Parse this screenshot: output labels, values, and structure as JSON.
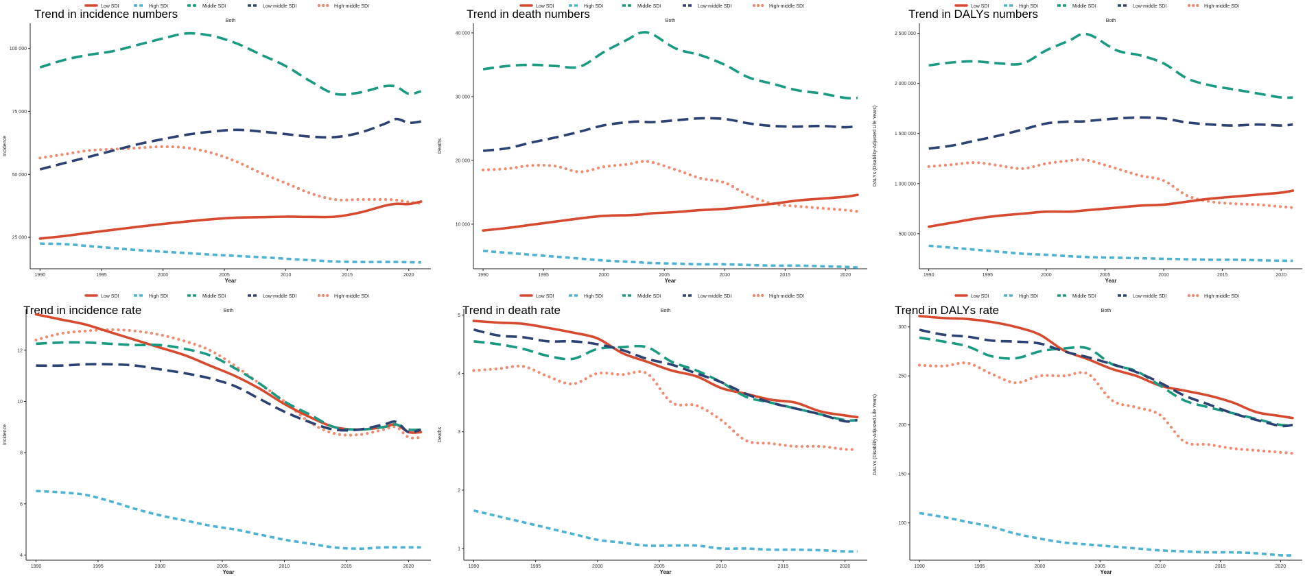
{
  "figure": {
    "series_names": [
      "Low SDI",
      "High SDI",
      "Middle SDI",
      "Low-middle SDI",
      "High-middle SDI"
    ],
    "series_colors": [
      "#d64a2f",
      "#4db3d3",
      "#1a9a80",
      "#2b4272",
      "#f08a70"
    ],
    "series_styles": [
      "solid",
      "dashed",
      "longdash",
      "longdash",
      "dotted"
    ]
  },
  "chart_data": [
    {
      "type": "line",
      "title": "Trend in incidence numbers",
      "subtitle": "Both",
      "xlabel": "Year",
      "ylabel": "Incidence",
      "xlim": [
        1989.2,
        2021.8
      ],
      "ylim": [
        12500,
        110000
      ],
      "x_ticks": [
        1990,
        1995,
        2000,
        2005,
        2010,
        2015,
        2020
      ],
      "y_ticks": [
        25000,
        50000,
        75000,
        100000
      ],
      "y_tick_labels": [
        "25 000",
        "50 000",
        "75 000",
        "100 000"
      ],
      "x": [
        1990,
        1992,
        1994,
        1996,
        1998,
        2000,
        2002,
        2004,
        2006,
        2008,
        2010,
        2012,
        2014,
        2016,
        2018,
        2019,
        2020,
        2021
      ],
      "series": [
        {
          "name": "Low SDI",
          "values": [
            24500,
            25500,
            26800,
            28000,
            29200,
            30300,
            31300,
            32200,
            32800,
            33000,
            33200,
            33100,
            33200,
            34800,
            37500,
            38300,
            38200,
            39200
          ]
        },
        {
          "name": "High SDI",
          "values": [
            22500,
            22300,
            21500,
            20700,
            19900,
            19300,
            18700,
            18100,
            17600,
            17100,
            16500,
            15900,
            15400,
            15200,
            15200,
            15200,
            15100,
            15000
          ]
        },
        {
          "name": "Middle SDI",
          "values": [
            92500,
            95500,
            97500,
            99000,
            101500,
            104000,
            106000,
            105000,
            102000,
            97500,
            93000,
            87000,
            82000,
            82500,
            85000,
            84800,
            82000,
            83000
          ]
        },
        {
          "name": "Low-middle SDI",
          "values": [
            52000,
            54500,
            57000,
            59500,
            62000,
            64000,
            65800,
            67000,
            67700,
            67000,
            66000,
            65000,
            64800,
            66500,
            70000,
            72000,
            70500,
            71000
          ]
        },
        {
          "name": "High-middle SDI",
          "values": [
            56500,
            58000,
            59500,
            60000,
            60500,
            61000,
            60500,
            58500,
            55000,
            50500,
            46500,
            42500,
            40000,
            40000,
            40000,
            39800,
            39000,
            38500
          ]
        }
      ]
    },
    {
      "type": "line",
      "title": "Trend in death numbers",
      "subtitle": "Both",
      "xlabel": "Year",
      "ylabel": "Deaths",
      "xlim": [
        1989.2,
        2021.8
      ],
      "ylim": [
        3000,
        41500
      ],
      "x_ticks": [
        1990,
        1995,
        2000,
        2005,
        2010,
        2015,
        2020
      ],
      "y_ticks": [
        10000,
        20000,
        30000,
        40000
      ],
      "y_tick_labels": [
        "10 000",
        "20 000",
        "30 000",
        "40 000"
      ],
      "x": [
        1990,
        1992,
        1994,
        1996,
        1998,
        2000,
        2002,
        2003,
        2004,
        2006,
        2008,
        2010,
        2012,
        2014,
        2016,
        2018,
        2020,
        2021
      ],
      "series": [
        {
          "name": "Low SDI",
          "values": [
            9000,
            9400,
            9900,
            10400,
            10900,
            11300,
            11400,
            11500,
            11700,
            11900,
            12200,
            12400,
            12800,
            13200,
            13700,
            14000,
            14300,
            14600
          ]
        },
        {
          "name": "High SDI",
          "values": [
            5800,
            5500,
            5200,
            4900,
            4600,
            4300,
            4100,
            4000,
            3900,
            3800,
            3700,
            3700,
            3600,
            3500,
            3500,
            3400,
            3300,
            3200
          ]
        },
        {
          "name": "Middle SDI",
          "values": [
            34300,
            34800,
            35000,
            34800,
            34700,
            37000,
            39000,
            40000,
            39800,
            37500,
            36500,
            35000,
            33000,
            32000,
            31000,
            30500,
            29800,
            29800
          ]
        },
        {
          "name": "Low-middle SDI",
          "values": [
            21500,
            21900,
            22800,
            23600,
            24500,
            25500,
            26000,
            26100,
            26000,
            26300,
            26600,
            26500,
            25800,
            25400,
            25300,
            25400,
            25200,
            25400
          ]
        },
        {
          "name": "High-middle SDI",
          "values": [
            18500,
            18700,
            19200,
            19100,
            18200,
            19000,
            19400,
            19800,
            19700,
            18500,
            17200,
            16500,
            14500,
            13200,
            12800,
            12500,
            12200,
            12000
          ]
        }
      ]
    },
    {
      "type": "line",
      "title": "Trend in DALYs numbers",
      "subtitle": "Both",
      "xlabel": "Year",
      "ylabel": "DALYs (Disability-Adjusted Life Years)",
      "xlim": [
        1989.2,
        2021.8
      ],
      "ylim": [
        150000,
        2600000
      ],
      "x_ticks": [
        1990,
        1995,
        2000,
        2005,
        2010,
        2015,
        2020
      ],
      "y_ticks": [
        500000,
        1000000,
        1500000,
        2000000,
        2500000
      ],
      "y_tick_labels": [
        "500 000",
        "1 000 000",
        "1 500 000",
        "2 000 000",
        "2 500 000"
      ],
      "x": [
        1990,
        1992,
        1994,
        1996,
        1998,
        2000,
        2002,
        2003,
        2004,
        2006,
        2008,
        2010,
        2012,
        2014,
        2016,
        2018,
        2020,
        2021
      ],
      "series": [
        {
          "name": "Low SDI",
          "values": [
            570000,
            610000,
            650000,
            680000,
            700000,
            720000,
            720000,
            730000,
            740000,
            760000,
            780000,
            790000,
            820000,
            850000,
            870000,
            890000,
            910000,
            930000
          ]
        },
        {
          "name": "High SDI",
          "values": [
            380000,
            360000,
            340000,
            320000,
            300000,
            290000,
            275000,
            270000,
            265000,
            260000,
            255000,
            250000,
            245000,
            240000,
            240000,
            235000,
            230000,
            230000
          ]
        },
        {
          "name": "Middle SDI",
          "values": [
            2180000,
            2210000,
            2220000,
            2200000,
            2200000,
            2330000,
            2430000,
            2490000,
            2470000,
            2330000,
            2280000,
            2200000,
            2050000,
            1980000,
            1940000,
            1900000,
            1860000,
            1860000
          ]
        },
        {
          "name": "Low-middle SDI",
          "values": [
            1350000,
            1380000,
            1430000,
            1480000,
            1540000,
            1600000,
            1620000,
            1620000,
            1630000,
            1650000,
            1660000,
            1650000,
            1610000,
            1590000,
            1580000,
            1590000,
            1580000,
            1590000
          ]
        },
        {
          "name": "High-middle SDI",
          "values": [
            1170000,
            1190000,
            1210000,
            1180000,
            1150000,
            1200000,
            1230000,
            1240000,
            1220000,
            1150000,
            1080000,
            1030000,
            880000,
            820000,
            800000,
            790000,
            770000,
            760000
          ]
        }
      ]
    },
    {
      "type": "line",
      "title": "Trend in incidence rate",
      "subtitle": "Both",
      "xlabel": "Year",
      "ylabel": "Incidence",
      "xlim": [
        1989.2,
        2021.8
      ],
      "ylim": [
        3.8,
        13.6
      ],
      "x_ticks": [
        1990,
        1995,
        2000,
        2005,
        2010,
        2015,
        2020
      ],
      "y_ticks": [
        4,
        6,
        8,
        10,
        12
      ],
      "y_tick_labels": [
        "4",
        "6",
        "8",
        "10",
        "12"
      ],
      "x": [
        1990,
        1992,
        1994,
        1996,
        1998,
        2000,
        2002,
        2004,
        2006,
        2008,
        2010,
        2012,
        2014,
        2016,
        2018,
        2019,
        2020,
        2021
      ],
      "series": [
        {
          "name": "Low SDI",
          "values": [
            13.4,
            13.2,
            13.0,
            12.7,
            12.4,
            12.1,
            11.8,
            11.4,
            11.0,
            10.5,
            9.9,
            9.4,
            9.0,
            8.9,
            9.0,
            9.1,
            8.8,
            8.8
          ]
        },
        {
          "name": "High SDI",
          "values": [
            6.5,
            6.45,
            6.35,
            6.1,
            5.8,
            5.55,
            5.35,
            5.15,
            5.0,
            4.8,
            4.6,
            4.45,
            4.3,
            4.25,
            4.3,
            4.3,
            4.3,
            4.3
          ]
        },
        {
          "name": "Middle SDI",
          "values": [
            12.25,
            12.3,
            12.3,
            12.25,
            12.2,
            12.2,
            12.05,
            11.8,
            11.3,
            10.7,
            10.0,
            9.5,
            9.0,
            8.9,
            9.0,
            9.1,
            8.9,
            8.9
          ]
        },
        {
          "name": "Low-middle SDI",
          "values": [
            11.4,
            11.4,
            11.45,
            11.45,
            11.4,
            11.25,
            11.1,
            10.9,
            10.6,
            10.1,
            9.6,
            9.2,
            8.9,
            8.9,
            9.1,
            9.2,
            8.8,
            8.9
          ]
        },
        {
          "name": "High-middle SDI",
          "values": [
            12.4,
            12.65,
            12.75,
            12.8,
            12.75,
            12.6,
            12.35,
            12.0,
            11.4,
            10.7,
            10.0,
            9.2,
            8.75,
            8.7,
            8.9,
            9.0,
            8.6,
            8.6
          ]
        }
      ]
    },
    {
      "type": "line",
      "title": "Trend in death rate",
      "subtitle": "Both",
      "xlabel": "Year",
      "ylabel": "Deaths",
      "xlim": [
        1989.2,
        2021.8
      ],
      "ylim": [
        0.8,
        5.1
      ],
      "x_ticks": [
        1990,
        1995,
        2000,
        2005,
        2010,
        2015,
        2020
      ],
      "y_ticks": [
        1,
        2,
        3,
        4,
        5
      ],
      "y_tick_labels": [
        "1",
        "2",
        "3",
        "4",
        "5"
      ],
      "x": [
        1990,
        1992,
        1994,
        1996,
        1998,
        2000,
        2002,
        2004,
        2006,
        2008,
        2010,
        2012,
        2014,
        2016,
        2018,
        2020,
        2021
      ],
      "series": [
        {
          "name": "Low SDI",
          "values": [
            4.9,
            4.87,
            4.85,
            4.78,
            4.7,
            4.6,
            4.35,
            4.2,
            4.05,
            3.95,
            3.75,
            3.65,
            3.55,
            3.5,
            3.35,
            3.28,
            3.25
          ]
        },
        {
          "name": "High SDI",
          "values": [
            1.65,
            1.55,
            1.45,
            1.35,
            1.25,
            1.15,
            1.1,
            1.05,
            1.05,
            1.05,
            1.0,
            1.0,
            0.98,
            0.98,
            0.97,
            0.95,
            0.95
          ]
        },
        {
          "name": "Middle SDI",
          "values": [
            4.55,
            4.5,
            4.42,
            4.3,
            4.25,
            4.42,
            4.45,
            4.45,
            4.2,
            4.05,
            3.85,
            3.6,
            3.5,
            3.4,
            3.3,
            3.2,
            3.2
          ]
        },
        {
          "name": "Low-middle SDI",
          "values": [
            4.75,
            4.65,
            4.62,
            4.55,
            4.55,
            4.5,
            4.4,
            4.25,
            4.15,
            4.0,
            3.85,
            3.65,
            3.5,
            3.4,
            3.3,
            3.18,
            3.2
          ]
        },
        {
          "name": "High-middle SDI",
          "values": [
            4.05,
            4.08,
            4.12,
            3.95,
            3.82,
            4.0,
            3.98,
            4.0,
            3.5,
            3.45,
            3.2,
            2.85,
            2.8,
            2.75,
            2.75,
            2.7,
            2.7
          ]
        }
      ]
    },
    {
      "type": "line",
      "title": "Trend in DALYs rate",
      "subtitle": "Both",
      "xlabel": "Year",
      "ylabel": "DALYs (Disability-Adjusted Life Years)",
      "xlim": [
        1989.2,
        2021.8
      ],
      "ylim": [
        62,
        318
      ],
      "x_ticks": [
        1990,
        1995,
        2000,
        2005,
        2010,
        2015,
        2020
      ],
      "y_ticks": [
        100,
        150,
        200,
        250,
        300
      ],
      "y_tick_labels": [
        "100",
        "150",
        "200",
        "250",
        "300"
      ],
      "x": [
        1990,
        1992,
        1994,
        1996,
        1998,
        2000,
        2002,
        2004,
        2006,
        2008,
        2010,
        2012,
        2014,
        2016,
        2018,
        2020,
        2021
      ],
      "series": [
        {
          "name": "Low SDI",
          "values": [
            311,
            309,
            308,
            305,
            300,
            292,
            276,
            267,
            257,
            250,
            240,
            235,
            230,
            223,
            213,
            209,
            207
          ]
        },
        {
          "name": "High SDI",
          "values": [
            110,
            106,
            101,
            96,
            89,
            84,
            80,
            78,
            76,
            74,
            72,
            71,
            70,
            70,
            69,
            67,
            67
          ]
        },
        {
          "name": "Middle SDI",
          "values": [
            289,
            285,
            280,
            270,
            268,
            275,
            278,
            278,
            262,
            255,
            240,
            225,
            218,
            212,
            206,
            200,
            200
          ]
        },
        {
          "name": "Low-middle SDI",
          "values": [
            297,
            292,
            290,
            286,
            285,
            283,
            275,
            269,
            262,
            254,
            243,
            230,
            221,
            212,
            205,
            199,
            200
          ]
        },
        {
          "name": "High-middle SDI",
          "values": [
            261,
            260,
            263,
            252,
            243,
            250,
            250,
            252,
            225,
            218,
            210,
            183,
            180,
            176,
            174,
            172,
            171
          ]
        }
      ]
    }
  ]
}
